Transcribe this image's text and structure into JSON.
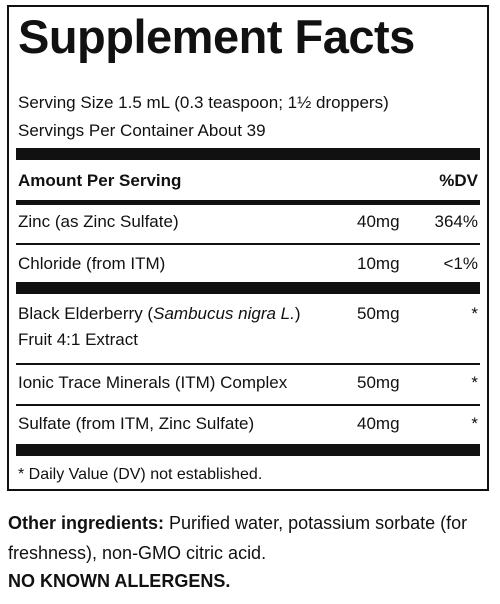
{
  "label": {
    "title": "Supplement Facts",
    "serving_size": "Serving Size 1.5 mL (0.3 teaspoon; 1½ droppers)",
    "servings_per_container": "Servings Per Container About 39",
    "header": {
      "amount": "Amount Per Serving",
      "dv": "%DV"
    },
    "rows": [
      {
        "name": "Zinc (as Zinc Sulfate)",
        "amount": "40mg",
        "dv": "364%"
      },
      {
        "name": "Chloride (from ITM)",
        "amount": "10mg",
        "dv": "<1%"
      },
      {
        "name_pre": "Black Elderberry (",
        "name_italic": "Sambucus nigra L.",
        "name_post": ")",
        "name_line2": "Fruit 4:1 Extract",
        "amount": "50mg",
        "dv": "*"
      },
      {
        "name": "Ionic Trace Minerals (ITM) Complex",
        "amount": "50mg",
        "dv": "*"
      },
      {
        "name": "Sulfate (from ITM, Zinc Sulfate)",
        "amount": "40mg",
        "dv": "*"
      }
    ],
    "footnote": "* Daily Value (DV) not established."
  },
  "other_ingredients": {
    "label": "Other ingredients:",
    "text": " Purified water, potassium sorbate (for freshness), non-GMO citric acid."
  },
  "allergens": "NO KNOWN ALLERGENS."
}
